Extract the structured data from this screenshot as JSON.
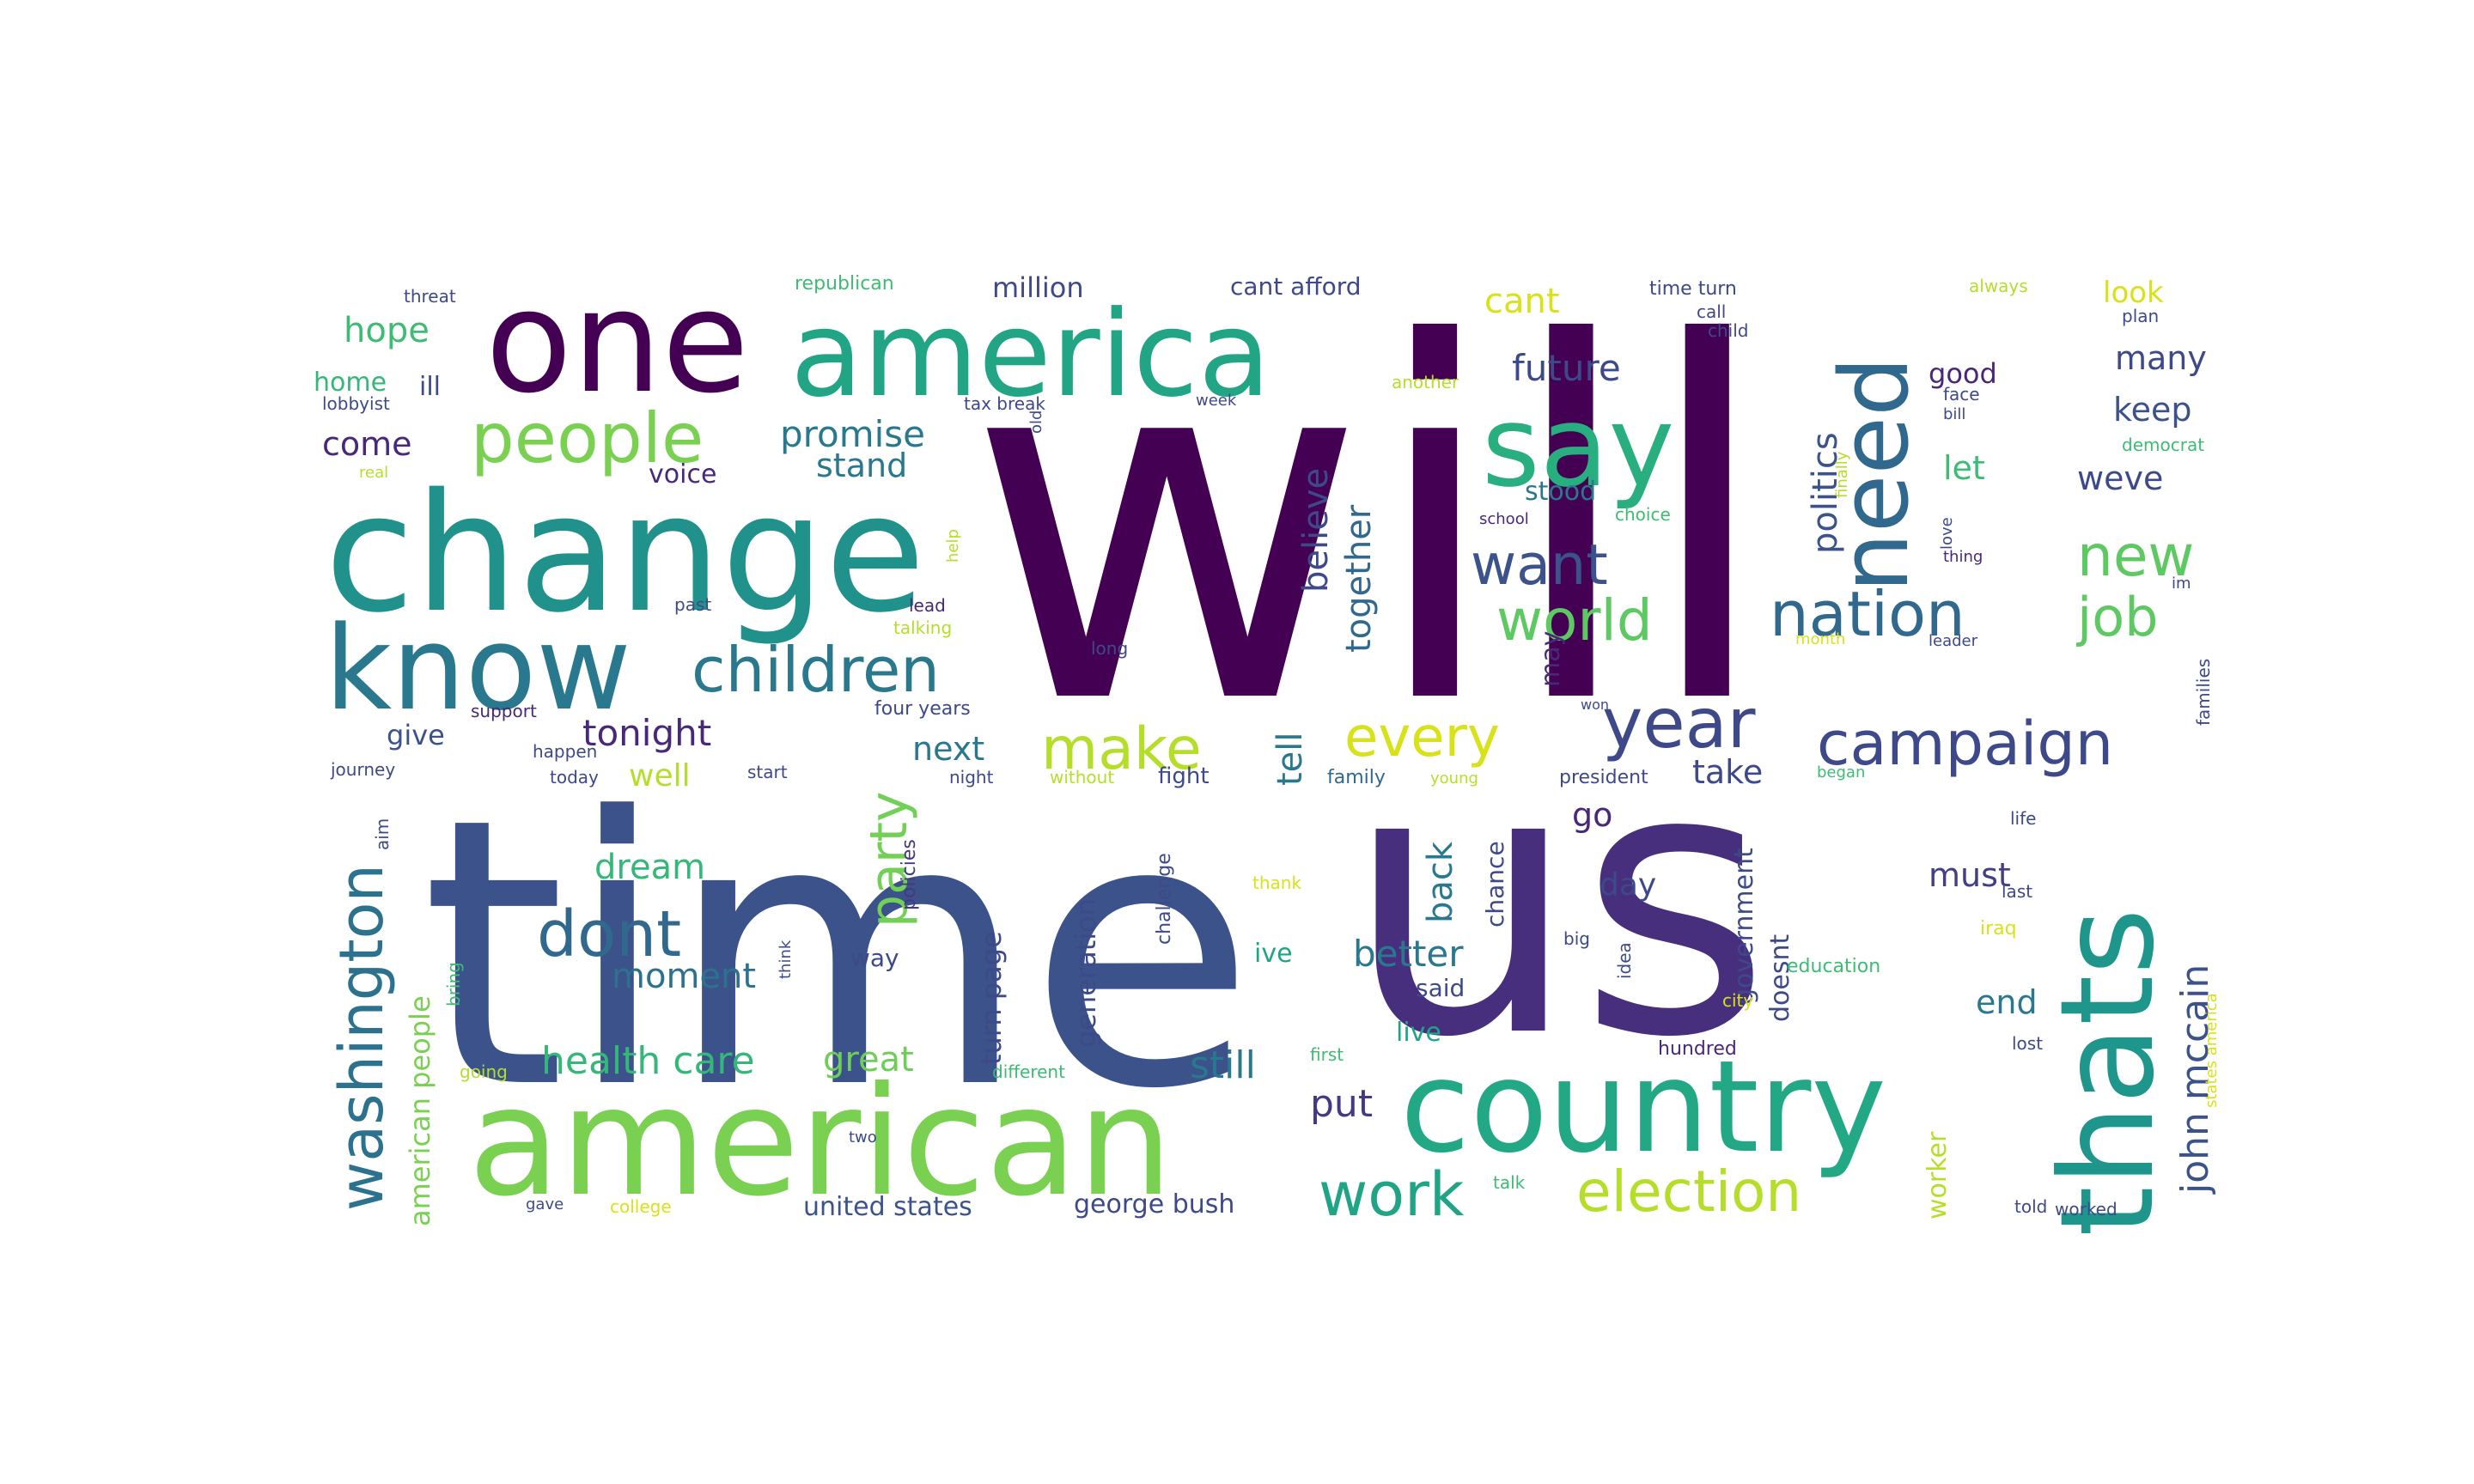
{
  "words": [
    {
      "text": "will",
      "color": "#440154"
    },
    {
      "text": "time",
      "color": "#3b528b"
    },
    {
      "text": "us",
      "color": "#472f7d"
    },
    {
      "text": "change",
      "color": "#21918c"
    },
    {
      "text": "one",
      "color": "#440154"
    },
    {
      "text": "america",
      "color": "#21a585"
    },
    {
      "text": "american",
      "color": "#7ad151"
    },
    {
      "text": "country",
      "color": "#22a884"
    },
    {
      "text": "know",
      "color": "#2a788e"
    },
    {
      "text": "thats",
      "color": "#1f968b"
    },
    {
      "text": "say",
      "color": "#29af7f"
    },
    {
      "text": "need",
      "color": "#31688e"
    },
    {
      "text": "people",
      "color": "#7ad151"
    },
    {
      "text": "children",
      "color": "#2a788e"
    },
    {
      "text": "nation",
      "color": "#31688e"
    },
    {
      "text": "washington",
      "color": "#2c728e"
    },
    {
      "text": "campaign",
      "color": "#3e4989"
    },
    {
      "text": "year",
      "color": "#3e4989"
    },
    {
      "text": "world",
      "color": "#5ec962"
    },
    {
      "text": "want",
      "color": "#3b528b"
    },
    {
      "text": "election",
      "color": "#b5de2b"
    },
    {
      "text": "work",
      "color": "#20a486"
    },
    {
      "text": "make",
      "color": "#b5de2b"
    },
    {
      "text": "every",
      "color": "#d8e219"
    },
    {
      "text": "dont",
      "color": "#31688e"
    },
    {
      "text": "party",
      "color": "#73d056"
    },
    {
      "text": "new",
      "color": "#5ec962"
    },
    {
      "text": "job",
      "color": "#5ec962"
    },
    {
      "text": "john mccain",
      "color": "#3b528b"
    },
    {
      "text": "health care",
      "color": "#35b779"
    },
    {
      "text": "promise",
      "color": "#2a788e"
    },
    {
      "text": "tonight",
      "color": "#482878"
    },
    {
      "text": "future",
      "color": "#3e4989"
    },
    {
      "text": "politics",
      "color": "#3b528b"
    },
    {
      "text": "believe",
      "color": "#3e4989"
    },
    {
      "text": "together",
      "color": "#31688e"
    },
    {
      "text": "still",
      "color": "#2a788e"
    },
    {
      "text": "put",
      "color": "#443983"
    },
    {
      "text": "better",
      "color": "#2a788e"
    },
    {
      "text": "moment",
      "color": "#2c728e"
    },
    {
      "text": "dream",
      "color": "#35b779"
    },
    {
      "text": "great",
      "color": "#6ece58"
    },
    {
      "text": "hope",
      "color": "#3dbc74"
    },
    {
      "text": "come",
      "color": "#482878"
    },
    {
      "text": "stand",
      "color": "#2a788e"
    },
    {
      "text": "keep",
      "color": "#3b528b"
    },
    {
      "text": "many",
      "color": "#3e4989"
    },
    {
      "text": "weve",
      "color": "#3e4989"
    },
    {
      "text": "let",
      "color": "#3dbc74"
    },
    {
      "text": "next",
      "color": "#2a788e"
    },
    {
      "text": "tell",
      "color": "#2a788e"
    },
    {
      "text": "take",
      "color": "#3e4989"
    },
    {
      "text": "back",
      "color": "#2a788e"
    },
    {
      "text": "go",
      "color": "#482878"
    },
    {
      "text": "must",
      "color": "#433e85"
    },
    {
      "text": "end",
      "color": "#2a788e"
    },
    {
      "text": "day",
      "color": "#3e4989"
    },
    {
      "text": "give",
      "color": "#3b528b"
    },
    {
      "text": "well",
      "color": "#b5de2b"
    },
    {
      "text": "cant",
      "color": "#d8e219"
    },
    {
      "text": "look",
      "color": "#d8e219"
    },
    {
      "text": "good",
      "color": "#482878"
    },
    {
      "text": "stood",
      "color": "#2a788e"
    },
    {
      "text": "million",
      "color": "#3e4989"
    },
    {
      "text": "cant afford",
      "color": "#3e4989"
    },
    {
      "text": "united states",
      "color": "#3b528b"
    },
    {
      "text": "george bush",
      "color": "#3e4989"
    },
    {
      "text": "american people",
      "color": "#7ad151"
    },
    {
      "text": "turn page",
      "color": "#3e4989"
    },
    {
      "text": "generation",
      "color": "#3e4989"
    },
    {
      "text": "government",
      "color": "#3e4989"
    },
    {
      "text": "doesnt",
      "color": "#3e4989"
    },
    {
      "text": "chance",
      "color": "#3e4989"
    },
    {
      "text": "live",
      "color": "#20a486"
    },
    {
      "text": "said",
      "color": "#3e4989"
    },
    {
      "text": "ive",
      "color": "#20a486"
    },
    {
      "text": "way",
      "color": "#3e4989"
    },
    {
      "text": "voice",
      "color": "#482878"
    },
    {
      "text": "home",
      "color": "#35b779"
    },
    {
      "text": "ill",
      "color": "#3e4989"
    },
    {
      "text": "may",
      "color": "#482878"
    },
    {
      "text": "worker",
      "color": "#b5de2b"
    },
    {
      "text": "policies",
      "color": "#443983"
    },
    {
      "text": "challenge",
      "color": "#3e4989"
    },
    {
      "text": "fight",
      "color": "#3e4989"
    },
    {
      "text": "family",
      "color": "#31688e"
    },
    {
      "text": "president",
      "color": "#3e4989"
    },
    {
      "text": "four years",
      "color": "#3e4989"
    },
    {
      "text": "support",
      "color": "#482878"
    },
    {
      "text": "journey",
      "color": "#3e4989"
    },
    {
      "text": "today",
      "color": "#3e4989"
    },
    {
      "text": "happen",
      "color": "#3e4989"
    },
    {
      "text": "start",
      "color": "#3e4989"
    },
    {
      "text": "night",
      "color": "#3e4989"
    },
    {
      "text": "without",
      "color": "#b5de2b"
    },
    {
      "text": "young",
      "color": "#b5de2b"
    },
    {
      "text": "began",
      "color": "#3dbc74"
    },
    {
      "text": "school",
      "color": "#482878"
    },
    {
      "text": "choice",
      "color": "#3dbc74"
    },
    {
      "text": "thing",
      "color": "#482878"
    },
    {
      "text": "lead",
      "color": "#482878"
    },
    {
      "text": "past",
      "color": "#3e4989"
    },
    {
      "text": "talking",
      "color": "#b5de2b"
    },
    {
      "text": "long",
      "color": "#3e4989"
    },
    {
      "text": "leader",
      "color": "#3e4989"
    },
    {
      "text": "month",
      "color": "#d8e219"
    },
    {
      "text": "republican",
      "color": "#3dbc74"
    },
    {
      "text": "threat",
      "color": "#3e4989"
    },
    {
      "text": "lobbyist",
      "color": "#3e4989"
    },
    {
      "text": "time turn",
      "color": "#3e4989"
    },
    {
      "text": "another",
      "color": "#b5de2b"
    },
    {
      "text": "tax break",
      "color": "#3e4989"
    },
    {
      "text": "call",
      "color": "#3e4989"
    },
    {
      "text": "child",
      "color": "#3e4989"
    },
    {
      "text": "always",
      "color": "#b5de2b"
    },
    {
      "text": "plan",
      "color": "#3e4989"
    },
    {
      "text": "face",
      "color": "#3e4989"
    },
    {
      "text": "bill",
      "color": "#3e4989"
    },
    {
      "text": "democrat",
      "color": "#3dbc74"
    },
    {
      "text": "families",
      "color": "#3e4989"
    },
    {
      "text": "education",
      "color": "#3dbc74"
    },
    {
      "text": "iraq",
      "color": "#d8e219"
    },
    {
      "text": "lost",
      "color": "#3e4989"
    },
    {
      "text": "hundred",
      "color": "#482878"
    },
    {
      "text": "life",
      "color": "#3e4989"
    },
    {
      "text": "last",
      "color": "#3e4989"
    },
    {
      "text": "big",
      "color": "#3e4989"
    },
    {
      "text": "idea",
      "color": "#3e4989"
    },
    {
      "text": "first",
      "color": "#3dbc74"
    },
    {
      "text": "city",
      "color": "#d8e219"
    },
    {
      "text": "going",
      "color": "#b5de2b"
    },
    {
      "text": "different",
      "color": "#3dbc74"
    },
    {
      "text": "college",
      "color": "#d8e219"
    },
    {
      "text": "gave",
      "color": "#3e4989"
    },
    {
      "text": "talk",
      "color": "#3dbc74"
    },
    {
      "text": "told",
      "color": "#3e4989"
    },
    {
      "text": "worked",
      "color": "#3e4989"
    },
    {
      "text": "think",
      "color": "#3e4989"
    },
    {
      "text": "thank",
      "color": "#d8e219"
    },
    {
      "text": "bring",
      "color": "#3dbc74"
    },
    {
      "text": "aim",
      "color": "#3e4989"
    },
    {
      "text": "two",
      "color": "#3e4989"
    },
    {
      "text": "real",
      "color": "#b5de2b"
    },
    {
      "text": "im",
      "color": "#3e4989"
    },
    {
      "text": "finally",
      "color": "#b5de2b"
    },
    {
      "text": "help",
      "color": "#b5de2b"
    },
    {
      "text": "old",
      "color": "#3e4989"
    },
    {
      "text": "week",
      "color": "#3e4989"
    },
    {
      "text": "love",
      "color": "#3e4989"
    },
    {
      "text": "states america",
      "color": "#d8e219"
    },
    {
      "text": "won",
      "color": "#3e4989"
    }
  ]
}
